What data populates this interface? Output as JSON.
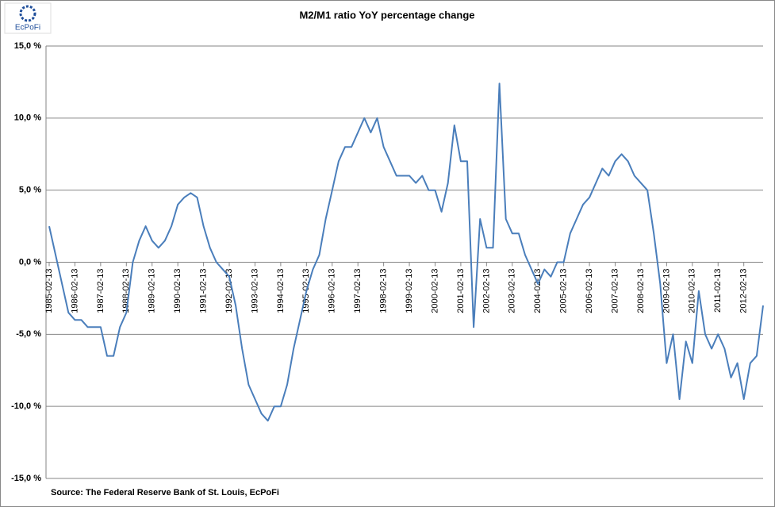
{
  "logo": "EcPoFi",
  "chart_data": {
    "type": "line",
    "title": "M2/M1 ratio YoY percentage change",
    "source": "Source: The Federal Reserve Bank of St. Louis, EcPoFi",
    "categories": [
      "1985-02-13",
      null,
      null,
      null,
      "1986-02-13",
      null,
      null,
      null,
      "1987-02-13",
      null,
      null,
      null,
      "1988-02-13",
      null,
      null,
      null,
      "1989-02-13",
      null,
      null,
      null,
      "1990-02-13",
      null,
      null,
      null,
      "1991-02-13",
      null,
      null,
      null,
      "1992-02-13",
      null,
      null,
      null,
      "1993-02-13",
      null,
      null,
      null,
      "1994-02-13",
      null,
      null,
      null,
      "1995-02-13",
      null,
      null,
      null,
      "1996-02-13",
      null,
      null,
      null,
      "1997-02-13",
      null,
      null,
      null,
      "1998-02-13",
      null,
      null,
      null,
      "1999-02-13",
      null,
      null,
      null,
      "2000-02-13",
      null,
      null,
      null,
      "2001-02-13",
      null,
      null,
      null,
      "2002-02-13",
      null,
      null,
      null,
      "2003-02-13",
      null,
      null,
      null,
      "2004-02-13",
      null,
      null,
      null,
      "2005-02-13",
      null,
      null,
      null,
      "2006-02-13",
      null,
      null,
      null,
      "2007-02-13",
      null,
      null,
      null,
      "2008-02-13",
      null,
      null,
      null,
      "2009-02-13",
      null,
      null,
      null,
      "2010-02-13",
      null,
      null,
      null,
      "2011-02-13",
      null,
      null,
      null,
      "2012-02-13",
      null,
      null,
      null
    ],
    "series": [
      {
        "name": "M2/M1",
        "color": "#4a7ebb",
        "values": [
          2.5,
          0.5,
          -1.5,
          -3.5,
          -4,
          -4,
          -4.5,
          -4.5,
          -4.5,
          -6.5,
          -6.5,
          -4.5,
          -3.5,
          0,
          1.5,
          2.5,
          1.5,
          1,
          1.5,
          2.5,
          4,
          4.5,
          4.8,
          4.5,
          2.5,
          1,
          0,
          -0.5,
          -1,
          -3,
          -6,
          -8.5,
          -9.5,
          -10.5,
          -11,
          -10,
          -10,
          -8.5,
          -6,
          -4,
          -2,
          -0.5,
          0.5,
          3,
          5,
          7,
          8,
          8,
          9,
          10,
          9,
          10,
          8,
          7,
          6,
          6,
          6,
          5.5,
          6,
          5,
          5,
          3.5,
          5.5,
          9.5,
          7,
          7,
          -4.5,
          3,
          1,
          1,
          12.4,
          3,
          2,
          2,
          0.5,
          -0.5,
          -1.5,
          -0.5,
          -1,
          0,
          0,
          2,
          3,
          4,
          4.5,
          5.5,
          6.5,
          6,
          7,
          7.5,
          7,
          6,
          5.5,
          5,
          2,
          -1.5,
          -7,
          -5,
          -9.5,
          -5.5,
          -7,
          -2,
          -5,
          -6,
          -5,
          -6,
          -8,
          -7,
          -9.5,
          -7,
          -6.5,
          -3
        ]
      }
    ],
    "ylim": [
      -15,
      15
    ],
    "yticks": [
      {
        "value": -15,
        "label": "-15,0 %"
      },
      {
        "value": -10,
        "label": "-10,0 %"
      },
      {
        "value": -5,
        "label": "-5,0 %"
      },
      {
        "value": 0,
        "label": "0,0 %"
      },
      {
        "value": 5,
        "label": "5,0 %"
      },
      {
        "value": 10,
        "label": "10,0 %"
      },
      {
        "value": 15,
        "label": "15,0 %"
      }
    ],
    "grid": true
  }
}
